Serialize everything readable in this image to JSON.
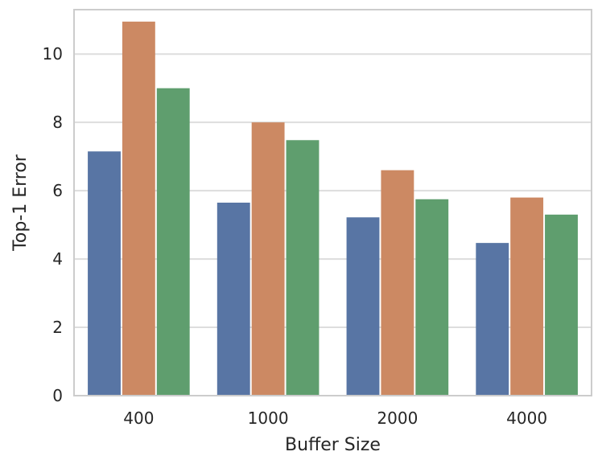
{
  "chart_data": {
    "type": "bar",
    "title": "",
    "xlabel": "Buffer Size",
    "ylabel": "Top-1 Error",
    "categories": [
      "400",
      "1000",
      "2000",
      "4000"
    ],
    "series": [
      {
        "values": [
          7.15,
          5.65,
          5.22,
          4.47
        ],
        "color": "#5875a4"
      },
      {
        "values": [
          10.95,
          8.0,
          6.6,
          5.8
        ],
        "color": "#cc8963"
      },
      {
        "values": [
          9.0,
          7.48,
          5.75,
          5.3
        ],
        "color": "#5f9e6e"
      }
    ],
    "ylim": [
      0,
      11.3
    ],
    "yticks": [
      "0",
      "2",
      "4",
      "6",
      "8",
      "10"
    ],
    "grid": "horizontal",
    "legend": "none"
  }
}
